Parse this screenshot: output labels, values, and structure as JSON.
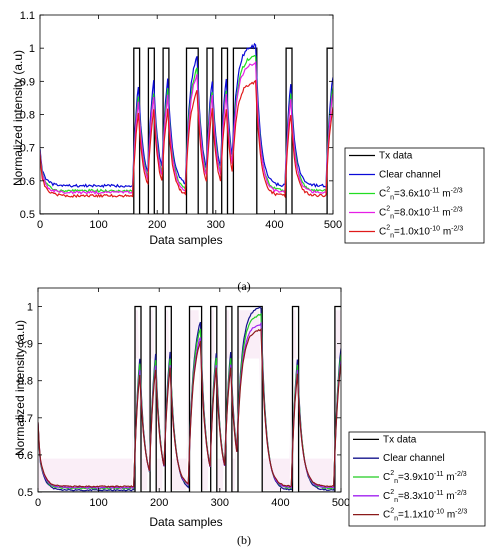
{
  "chart_data": [
    {
      "panel": "a",
      "caption": "(a)",
      "type": "line",
      "xlabel": "Data samples",
      "ylabel": "Normalized intensity (a.u)",
      "xlim": [
        0,
        500
      ],
      "ylim": [
        0.5,
        1.1
      ],
      "xticks": [
        "0",
        "100",
        "200",
        "300",
        "400",
        "500"
      ],
      "yticks": [
        "0.5",
        "0.6",
        "0.7",
        "0.8",
        "0.9",
        "1",
        "1.1"
      ],
      "grid": false,
      "legend_position": "right",
      "tx_bits": [
        [
          0,
          0
        ],
        [
          120,
          0
        ],
        [
          160,
          1
        ],
        [
          170,
          0
        ],
        [
          185,
          1
        ],
        [
          195,
          0
        ],
        [
          210,
          1
        ],
        [
          220,
          0
        ],
        [
          250,
          1
        ],
        [
          270,
          0
        ],
        [
          285,
          1
        ],
        [
          295,
          0
        ],
        [
          310,
          1
        ],
        [
          320,
          0
        ],
        [
          330,
          1
        ],
        [
          370,
          0
        ],
        [
          420,
          1
        ],
        [
          430,
          0
        ],
        [
          490,
          1
        ],
        [
          500,
          1
        ]
      ],
      "series": [
        {
          "name": "Tx data",
          "color": "#000000",
          "kind": "tx",
          "lo": 0.5,
          "hi": 1.0
        },
        {
          "name": "Clear channel",
          "color": "#0a0ad8",
          "kind": "rx",
          "hi": 1.01,
          "lo": 0.585,
          "start": 0.76
        },
        {
          "name": "C_n^2=3.6x10^-11 m^-2/3",
          "color": "#22dd22",
          "kind": "rx",
          "hi": 0.975,
          "lo": 0.57,
          "start": 0.76
        },
        {
          "name": "C_n^2=8.0x10^-11 m^-2/3",
          "color": "#e61ee6",
          "kind": "rx",
          "hi": 0.955,
          "lo": 0.565,
          "start": 0.76
        },
        {
          "name": "C_n^2=1.0x10^-10 m^-2/3",
          "color": "#e01a1a",
          "kind": "rx",
          "hi": 0.9,
          "lo": 0.555,
          "start": 0.75
        }
      ],
      "legend": [
        {
          "text": "Tx data",
          "color": "#000000"
        },
        {
          "text": "Clear channel",
          "color": "#0a0ad8"
        },
        {
          "pre": "C",
          "sub": "n",
          "sup": "2",
          "mid": "=3.6x10",
          "exp": "-11",
          "unit": " m",
          "uexp": "-2/3",
          "color": "#22dd22"
        },
        {
          "pre": "C",
          "sub": "n",
          "sup": "2",
          "mid": "=8.0x10",
          "exp": "-11",
          "unit": " m",
          "uexp": "-2/3",
          "color": "#e61ee6"
        },
        {
          "pre": "C",
          "sub": "n",
          "sup": "2",
          "mid": "=1.0x10",
          "exp": "-10",
          "unit": " m",
          "uexp": "-2/3",
          "color": "#e01a1a"
        }
      ]
    },
    {
      "panel": "b",
      "caption": "(b)",
      "type": "line",
      "xlabel": "Data samples",
      "ylabel": "Normalized intensity (a.u)",
      "xlim": [
        0,
        500
      ],
      "ylim": [
        0.5,
        1.05
      ],
      "xticks": [
        "0",
        "100",
        "200",
        "300",
        "400",
        "500"
      ],
      "yticks": [
        "0.5",
        "0.6",
        "0.7",
        "0.8",
        "0.9",
        "1"
      ],
      "grid": false,
      "legend_position": "bottom-right",
      "tx_bits": [
        [
          0,
          0
        ],
        [
          120,
          0
        ],
        [
          160,
          1
        ],
        [
          170,
          0
        ],
        [
          185,
          1
        ],
        [
          195,
          0
        ],
        [
          210,
          1
        ],
        [
          220,
          0
        ],
        [
          250,
          1
        ],
        [
          270,
          0
        ],
        [
          285,
          1
        ],
        [
          295,
          0
        ],
        [
          310,
          1
        ],
        [
          320,
          0
        ],
        [
          330,
          1
        ],
        [
          370,
          0
        ],
        [
          420,
          1
        ],
        [
          430,
          0
        ],
        [
          490,
          1
        ],
        [
          500,
          1
        ]
      ],
      "series": [
        {
          "name": "Tx data",
          "color": "#000000",
          "kind": "tx",
          "lo": 0.5,
          "hi": 1.0
        },
        {
          "name": "Clear channel",
          "color": "#14148c",
          "kind": "rx",
          "hi": 1.0,
          "lo": 0.505,
          "start": 0.78
        },
        {
          "name": "C_n^2=3.9x10^-11 m^-2/3",
          "color": "#22cc22",
          "kind": "rx",
          "hi": 0.98,
          "lo": 0.51,
          "start": 0.78
        },
        {
          "name": "C_n^2=8.3x10^-11 m^-2/3",
          "color": "#a020f0",
          "kind": "rx",
          "hi": 0.955,
          "lo": 0.512,
          "start": 0.78
        },
        {
          "name": "C_n^2=1.1x10^-10 m^-2/3",
          "color": "#8b1a1a",
          "kind": "rx",
          "hi": 0.94,
          "lo": 0.515,
          "start": 0.78
        }
      ],
      "legend": [
        {
          "text": "Tx data",
          "color": "#000000"
        },
        {
          "text": "Clear channel",
          "color": "#14148c"
        },
        {
          "pre": "C",
          "sub": "n",
          "sup": "2",
          "mid": "=3.9x10",
          "exp": "-11",
          "unit": " m",
          "uexp": "-2/3",
          "color": "#22cc22"
        },
        {
          "pre": "C",
          "sub": "n",
          "sup": "2",
          "mid": "=8.3x10",
          "exp": "-11",
          "unit": " m",
          "uexp": "-2/3",
          "color": "#a020f0"
        },
        {
          "pre": "C",
          "sub": "n",
          "sup": "2",
          "mid": "=1.1x10",
          "exp": "-10",
          "unit": " m",
          "uexp": "-2/3",
          "color": "#8b1a1a"
        }
      ]
    }
  ]
}
